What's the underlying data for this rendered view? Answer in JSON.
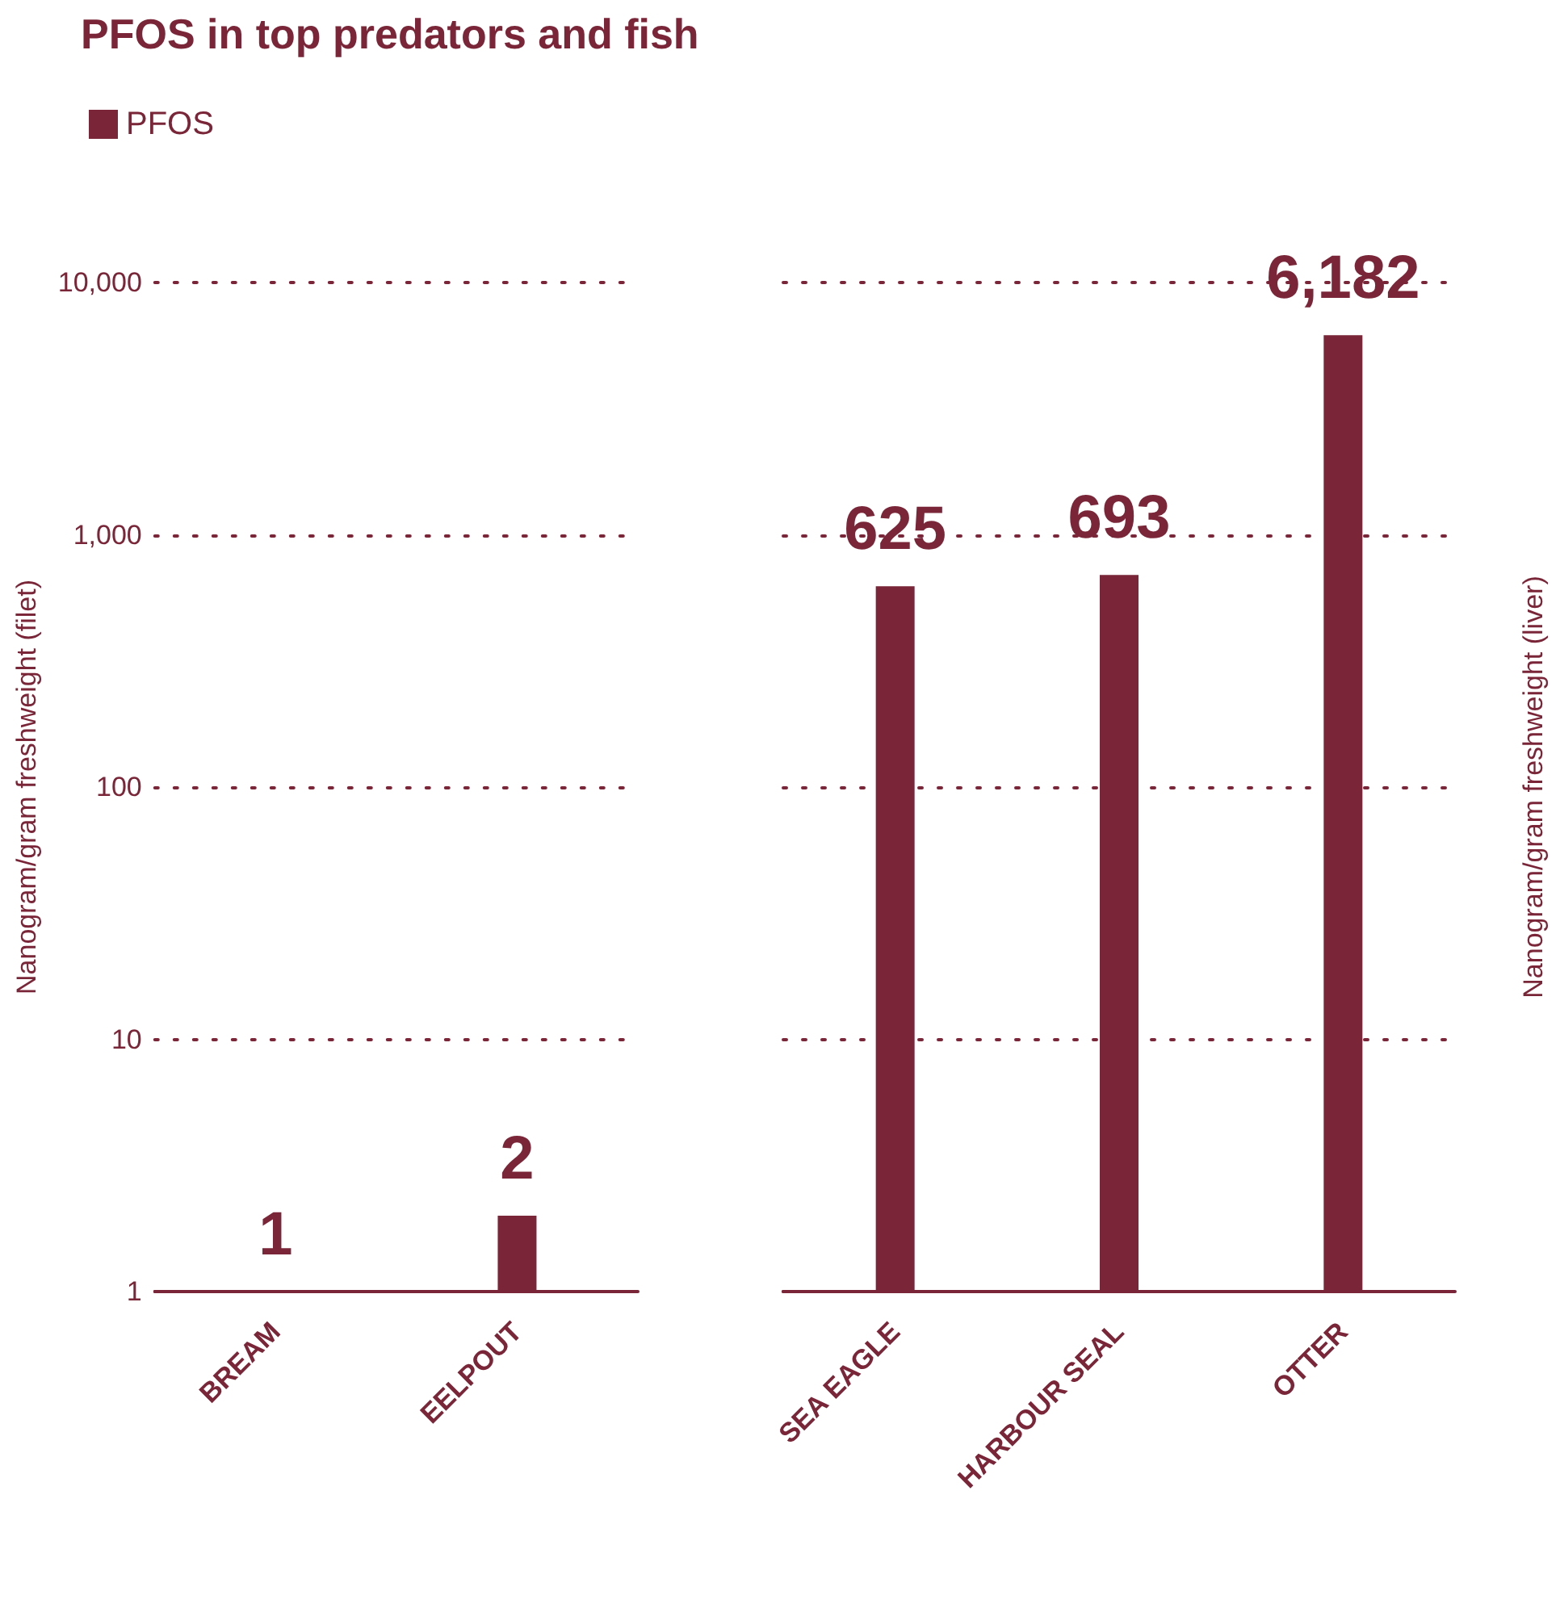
{
  "chart_data": [
    {
      "type": "bar",
      "title": "PFOS in top predators and fish",
      "ylabel": "Nanogram/gram freshweight (filet)",
      "categories": [
        "BREAM",
        "EELPOUT"
      ],
      "series": [
        {
          "name": "PFOS",
          "color": "#7a2638",
          "values": [
            1,
            2
          ],
          "value_labels": [
            "1",
            "2"
          ]
        }
      ],
      "log": "y",
      "ylim": [
        1,
        10000
      ],
      "yticks": [
        1,
        10,
        100,
        {
          "value": 1000,
          "label": "1,000"
        },
        {
          "value": 10000,
          "label": "10,000"
        }
      ],
      "grid": "y",
      "legend": "top left"
    },
    {
      "type": "bar",
      "y2label": "Nanogram/gram freshweight (liver)",
      "categories": [
        "SEA EAGLE",
        "HARBOUR SEAL",
        "OTTER"
      ],
      "series": [
        {
          "color": "#7a2638",
          "axis": "y2",
          "values": [
            625,
            693,
            6182
          ],
          "value_labels": [
            "625",
            "693",
            "6,182"
          ]
        }
      ],
      "log": "y2",
      "y2lim": [
        1,
        10000
      ],
      "y2ticks": [
        1,
        10,
        100,
        1000,
        10000
      ],
      "grid": "y",
      "tick_labels": "x",
      "legend": false
    }
  ]
}
